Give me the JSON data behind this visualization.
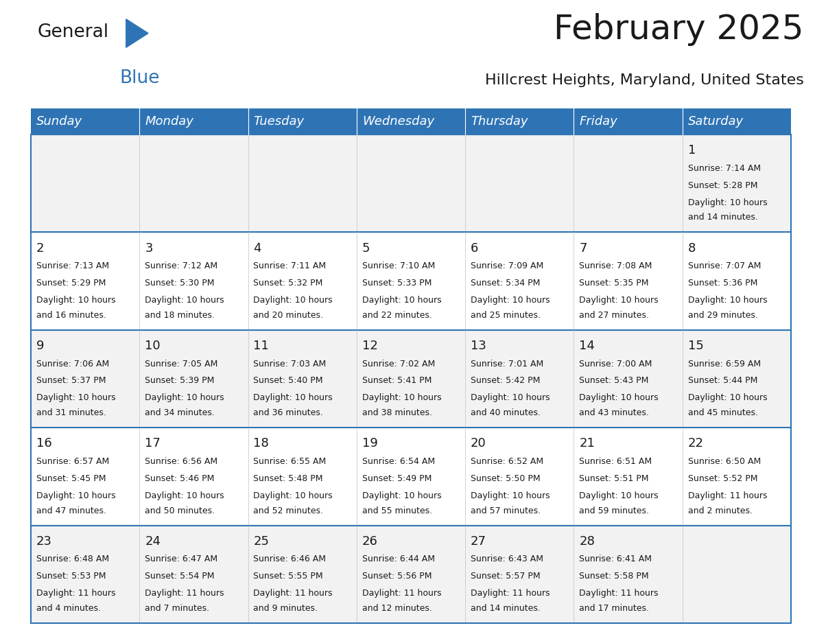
{
  "title": "February 2025",
  "subtitle": "Hillcrest Heights, Maryland, United States",
  "header_bg": "#2e74b5",
  "header_text_color": "#ffffff",
  "row_bg_odd": "#f2f2f2",
  "row_bg_even": "#ffffff",
  "border_color": "#2e74b5",
  "cell_border_color": "#c0c0c0",
  "day_headers": [
    "Sunday",
    "Monday",
    "Tuesday",
    "Wednesday",
    "Thursday",
    "Friday",
    "Saturday"
  ],
  "calendar_data": [
    [
      {
        "day": "",
        "sunrise": "",
        "sunset": "",
        "daylight": ""
      },
      {
        "day": "",
        "sunrise": "",
        "sunset": "",
        "daylight": ""
      },
      {
        "day": "",
        "sunrise": "",
        "sunset": "",
        "daylight": ""
      },
      {
        "day": "",
        "sunrise": "",
        "sunset": "",
        "daylight": ""
      },
      {
        "day": "",
        "sunrise": "",
        "sunset": "",
        "daylight": ""
      },
      {
        "day": "",
        "sunrise": "",
        "sunset": "",
        "daylight": ""
      },
      {
        "day": "1",
        "sunrise": "7:14 AM",
        "sunset": "5:28 PM",
        "daylight": "10 hours\nand 14 minutes."
      }
    ],
    [
      {
        "day": "2",
        "sunrise": "7:13 AM",
        "sunset": "5:29 PM",
        "daylight": "10 hours\nand 16 minutes."
      },
      {
        "day": "3",
        "sunrise": "7:12 AM",
        "sunset": "5:30 PM",
        "daylight": "10 hours\nand 18 minutes."
      },
      {
        "day": "4",
        "sunrise": "7:11 AM",
        "sunset": "5:32 PM",
        "daylight": "10 hours\nand 20 minutes."
      },
      {
        "day": "5",
        "sunrise": "7:10 AM",
        "sunset": "5:33 PM",
        "daylight": "10 hours\nand 22 minutes."
      },
      {
        "day": "6",
        "sunrise": "7:09 AM",
        "sunset": "5:34 PM",
        "daylight": "10 hours\nand 25 minutes."
      },
      {
        "day": "7",
        "sunrise": "7:08 AM",
        "sunset": "5:35 PM",
        "daylight": "10 hours\nand 27 minutes."
      },
      {
        "day": "8",
        "sunrise": "7:07 AM",
        "sunset": "5:36 PM",
        "daylight": "10 hours\nand 29 minutes."
      }
    ],
    [
      {
        "day": "9",
        "sunrise": "7:06 AM",
        "sunset": "5:37 PM",
        "daylight": "10 hours\nand 31 minutes."
      },
      {
        "day": "10",
        "sunrise": "7:05 AM",
        "sunset": "5:39 PM",
        "daylight": "10 hours\nand 34 minutes."
      },
      {
        "day": "11",
        "sunrise": "7:03 AM",
        "sunset": "5:40 PM",
        "daylight": "10 hours\nand 36 minutes."
      },
      {
        "day": "12",
        "sunrise": "7:02 AM",
        "sunset": "5:41 PM",
        "daylight": "10 hours\nand 38 minutes."
      },
      {
        "day": "13",
        "sunrise": "7:01 AM",
        "sunset": "5:42 PM",
        "daylight": "10 hours\nand 40 minutes."
      },
      {
        "day": "14",
        "sunrise": "7:00 AM",
        "sunset": "5:43 PM",
        "daylight": "10 hours\nand 43 minutes."
      },
      {
        "day": "15",
        "sunrise": "6:59 AM",
        "sunset": "5:44 PM",
        "daylight": "10 hours\nand 45 minutes."
      }
    ],
    [
      {
        "day": "16",
        "sunrise": "6:57 AM",
        "sunset": "5:45 PM",
        "daylight": "10 hours\nand 47 minutes."
      },
      {
        "day": "17",
        "sunrise": "6:56 AM",
        "sunset": "5:46 PM",
        "daylight": "10 hours\nand 50 minutes."
      },
      {
        "day": "18",
        "sunrise": "6:55 AM",
        "sunset": "5:48 PM",
        "daylight": "10 hours\nand 52 minutes."
      },
      {
        "day": "19",
        "sunrise": "6:54 AM",
        "sunset": "5:49 PM",
        "daylight": "10 hours\nand 55 minutes."
      },
      {
        "day": "20",
        "sunrise": "6:52 AM",
        "sunset": "5:50 PM",
        "daylight": "10 hours\nand 57 minutes."
      },
      {
        "day": "21",
        "sunrise": "6:51 AM",
        "sunset": "5:51 PM",
        "daylight": "10 hours\nand 59 minutes."
      },
      {
        "day": "22",
        "sunrise": "6:50 AM",
        "sunset": "5:52 PM",
        "daylight": "11 hours\nand 2 minutes."
      }
    ],
    [
      {
        "day": "23",
        "sunrise": "6:48 AM",
        "sunset": "5:53 PM",
        "daylight": "11 hours\nand 4 minutes."
      },
      {
        "day": "24",
        "sunrise": "6:47 AM",
        "sunset": "5:54 PM",
        "daylight": "11 hours\nand 7 minutes."
      },
      {
        "day": "25",
        "sunrise": "6:46 AM",
        "sunset": "5:55 PM",
        "daylight": "11 hours\nand 9 minutes."
      },
      {
        "day": "26",
        "sunrise": "6:44 AM",
        "sunset": "5:56 PM",
        "daylight": "11 hours\nand 12 minutes."
      },
      {
        "day": "27",
        "sunrise": "6:43 AM",
        "sunset": "5:57 PM",
        "daylight": "11 hours\nand 14 minutes."
      },
      {
        "day": "28",
        "sunrise": "6:41 AM",
        "sunset": "5:58 PM",
        "daylight": "11 hours\nand 17 minutes."
      },
      {
        "day": "",
        "sunrise": "",
        "sunset": "",
        "daylight": ""
      }
    ]
  ],
  "logo_text_general": "General",
  "logo_text_blue": "Blue",
  "logo_triangle_color": "#2e74b5",
  "title_fontsize": 36,
  "subtitle_fontsize": 16,
  "day_header_fontsize": 13,
  "day_num_fontsize": 13,
  "cell_text_fontsize": 9
}
